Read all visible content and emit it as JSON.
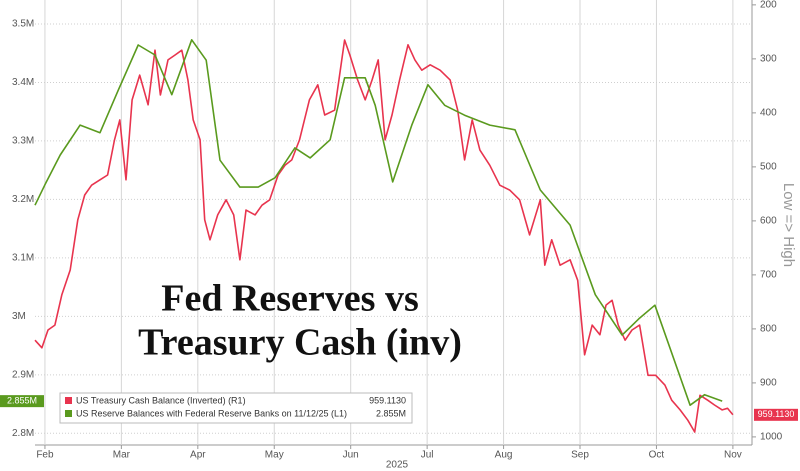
{
  "chart_data": {
    "type": "line",
    "title_lines": [
      "Fed Reserves vs",
      "Treasury Cash (inv)"
    ],
    "y2_label": "Low => High",
    "x_sublabel": "2025",
    "xlim": [
      1.87,
      11.25
    ],
    "xticks": [
      {
        "value": 2,
        "label": "Feb"
      },
      {
        "value": 3,
        "label": "Mar"
      },
      {
        "value": 4,
        "label": "Apr"
      },
      {
        "value": 5,
        "label": "May"
      },
      {
        "value": 6,
        "label": "Jun"
      },
      {
        "value": 7,
        "label": "Jul"
      },
      {
        "value": 8,
        "label": "Aug"
      },
      {
        "value": 9,
        "label": "Sep"
      },
      {
        "value": 10,
        "label": "Oct"
      },
      {
        "value": 11,
        "label": "Nov"
      }
    ],
    "ylim": [
      2.78,
      3.541
    ],
    "yticks": [
      {
        "value": 2.8,
        "label": "2.8M"
      },
      {
        "value": 2.9,
        "label": "2.9M"
      },
      {
        "value": 3,
        "label": "3M"
      },
      {
        "value": 3.1,
        "label": "3.1M"
      },
      {
        "value": 3.2,
        "label": "3.2M"
      },
      {
        "value": 3.3,
        "label": "3.3M"
      },
      {
        "value": 3.4,
        "label": "3.4M"
      },
      {
        "value": 3.5,
        "label": "3.5M"
      }
    ],
    "y2lim": [
      191,
      1015
    ],
    "y2_inverted": true,
    "y2ticks": [
      200,
      300,
      400,
      500,
      600,
      700,
      800,
      900,
      1000
    ],
    "grid": true,
    "legend": "lower left",
    "series": [
      {
        "name": "US Treasury Cash Balance (Inverted) (R1)",
        "color": "#e8344e",
        "axis": "y2",
        "x": [
          1.87,
          1.96,
          2.04,
          2.13,
          2.22,
          2.33,
          2.43,
          2.52,
          2.61,
          2.72,
          2.82,
          2.91,
          2.98,
          3.06,
          3.14,
          3.24,
          3.35,
          3.44,
          3.51,
          3.61,
          3.7,
          3.79,
          3.87,
          3.94,
          4.03,
          4.09,
          4.16,
          4.26,
          4.37,
          4.47,
          4.55,
          4.63,
          4.75,
          4.84,
          4.94,
          5.05,
          5.14,
          5.23,
          5.33,
          5.46,
          5.57,
          5.66,
          5.79,
          5.92,
          5.99,
          6.09,
          6.19,
          6.28,
          6.36,
          6.45,
          6.54,
          6.64,
          6.75,
          6.84,
          6.93,
          7.04,
          7.17,
          7.3,
          7.4,
          7.49,
          7.59,
          7.69,
          7.82,
          7.95,
          8.08,
          8.21,
          8.34,
          8.48,
          8.54,
          8.63,
          8.74,
          8.87,
          8.97,
          9.06,
          9.16,
          9.26,
          9.34,
          9.42,
          9.5,
          9.59,
          9.68,
          9.78,
          9.89,
          9.99,
          10.11,
          10.2,
          10.31,
          10.41,
          10.5,
          10.57,
          10.67,
          10.76,
          10.86,
          10.93,
          11.0
        ],
        "values": [
          821,
          835,
          802,
          793,
          737,
          691,
          598,
          552,
          534,
          524,
          515,
          450,
          413,
          524,
          376,
          330,
          385,
          284,
          367,
          302,
          293,
          284,
          339,
          413,
          450,
          598,
          635,
          589,
          561,
          589,
          672,
          580,
          589,
          571,
          561,
          515,
          497,
          487,
          450,
          376,
          348,
          404,
          395,
          265,
          293,
          339,
          376,
          339,
          302,
          450,
          404,
          339,
          274,
          302,
          321,
          311,
          321,
          339,
          395,
          487,
          413,
          469,
          497,
          534,
          543,
          561,
          626,
          561,
          682,
          635,
          682,
          672,
          710,
          848,
          793,
          811,
          756,
          747,
          793,
          821,
          802,
          793,
          886,
          886,
          904,
          932,
          950,
          969,
          991,
          923,
          932,
          941,
          950,
          947,
          959.113
        ],
        "value_labels": [
          null,
          null,
          null,
          null,
          null,
          null,
          null,
          null,
          null,
          null,
          null,
          null,
          null,
          null,
          null,
          null,
          null,
          null,
          null,
          null,
          null,
          null,
          null,
          null,
          null,
          null,
          null,
          null,
          null,
          null,
          null,
          null,
          null,
          null,
          null,
          null,
          null,
          null,
          null,
          null,
          null,
          null,
          null,
          null,
          null,
          null,
          null,
          null,
          null,
          null,
          null,
          null,
          null,
          null,
          null,
          null,
          null,
          null,
          null,
          null,
          null,
          null,
          null,
          null,
          null,
          null,
          null,
          null,
          null,
          null,
          null,
          null,
          null,
          null,
          null,
          null,
          null,
          null,
          null,
          null,
          null,
          null,
          null,
          null,
          null,
          null,
          null,
          null,
          null,
          null,
          null,
          null,
          null,
          null,
          "959.1130"
        ]
      },
      {
        "name": "US Reserve Balances with Federal Reserve Banks on 11/12/25 (L1)",
        "color": "#5a9a1e",
        "axis": "y",
        "x": [
          1.87,
          2.0,
          2.2,
          2.46,
          2.72,
          2.96,
          3.22,
          3.44,
          3.66,
          3.92,
          4.11,
          4.29,
          4.55,
          4.79,
          5.01,
          5.27,
          5.47,
          5.73,
          5.92,
          6.19,
          6.32,
          6.55,
          6.8,
          7.01,
          7.23,
          7.49,
          7.82,
          8.15,
          8.48,
          8.87,
          9.2,
          9.55,
          9.78,
          9.98,
          10.44,
          10.63,
          10.86
        ],
        "values": [
          3.19,
          3.225,
          3.276,
          3.327,
          3.314,
          3.387,
          3.464,
          3.447,
          3.379,
          3.473,
          3.438,
          3.267,
          3.221,
          3.221,
          3.237,
          3.288,
          3.271,
          3.302,
          3.408,
          3.408,
          3.361,
          3.23,
          3.327,
          3.396,
          3.361,
          3.344,
          3.327,
          3.319,
          3.216,
          3.156,
          3.037,
          2.968,
          2.997,
          3.019,
          2.848,
          2.866,
          2.855
        ],
        "value_labels": [
          null,
          null,
          null,
          null,
          null,
          null,
          null,
          null,
          null,
          null,
          null,
          null,
          null,
          null,
          null,
          null,
          null,
          null,
          null,
          null,
          null,
          null,
          null,
          null,
          null,
          null,
          null,
          null,
          null,
          null,
          null,
          null,
          null,
          null,
          null,
          null,
          "2.855M"
        ]
      }
    ]
  }
}
